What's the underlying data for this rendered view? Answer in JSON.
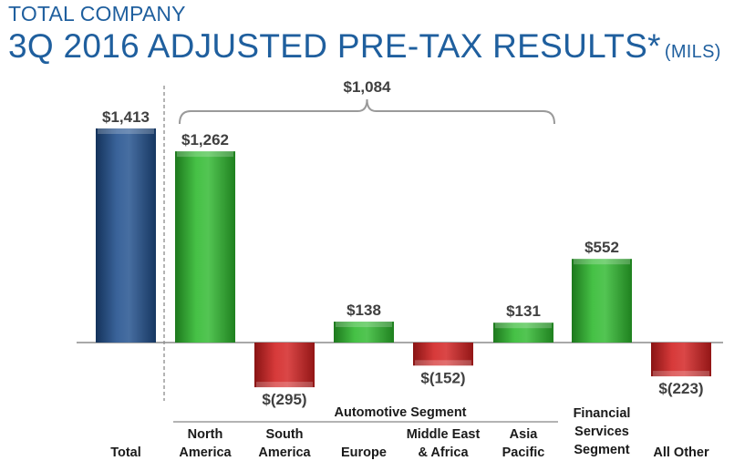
{
  "header": {
    "supertitle": "TOTAL COMPANY",
    "title": "3Q 2016 ADJUSTED PRE-TAX RESULTS*",
    "units": "(MILS)"
  },
  "colors": {
    "total": "#1f4e8c",
    "positive": "#2db82d",
    "negative": "#d21f1f",
    "title": "#1f5f9e"
  },
  "chart_data": {
    "type": "bar",
    "title": "3Q 2016 ADJUSTED PRE-TAX RESULTS*",
    "ylabel": "",
    "xlabel": "",
    "ylim": [
      -300,
      1450
    ],
    "bars": [
      {
        "category": [
          "Total"
        ],
        "value": 1413,
        "label": "$1,413",
        "kind": "total"
      },
      {
        "category": [
          "North",
          "America"
        ],
        "value": 1262,
        "label": "$1,262",
        "kind": "segment"
      },
      {
        "category": [
          "South",
          "America"
        ],
        "value": -295,
        "label": "$(295)",
        "kind": "segment"
      },
      {
        "category": [
          "Europe"
        ],
        "value": 138,
        "label": "$138",
        "kind": "segment"
      },
      {
        "category": [
          "Middle East",
          "& Africa"
        ],
        "value": -152,
        "label": "$(152)",
        "kind": "segment"
      },
      {
        "category": [
          "Asia",
          "Pacific"
        ],
        "value": 131,
        "label": "$131",
        "kind": "segment"
      },
      {
        "category": [
          "Financial",
          "Services",
          "Segment"
        ],
        "value": 552,
        "label": "$552",
        "kind": "segment"
      },
      {
        "category": [
          "All Other"
        ],
        "value": -223,
        "label": "$(223)",
        "kind": "segment"
      }
    ],
    "bracket": {
      "label": "$1,084",
      "value": 1084,
      "spans": [
        "North America",
        "Asia Pacific"
      ]
    },
    "group": {
      "label": "Automotive Segment",
      "spans": [
        "North America",
        "Asia Pacific"
      ]
    }
  }
}
